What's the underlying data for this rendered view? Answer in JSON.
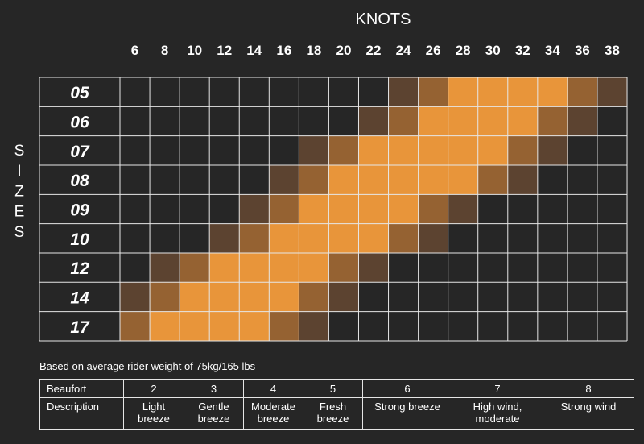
{
  "colors": {
    "background": "#262626",
    "grid_line": "#e6e6e6",
    "level_full": "#e8953a",
    "level_mid": "#956232",
    "level_dark": "#5c4330"
  },
  "chart_data": {
    "type": "heatmap",
    "title": "KNOTS",
    "ylabel": "SIZES",
    "x": [
      6,
      8,
      10,
      12,
      14,
      16,
      18,
      20,
      22,
      24,
      26,
      28,
      30,
      32,
      34,
      36,
      38
    ],
    "y": [
      "05",
      "06",
      "07",
      "08",
      "09",
      "10",
      "12",
      "14",
      "17"
    ],
    "levels_legend": "0 = none, 1 = dark brown, 2 = mid brown, 3 = orange",
    "z": [
      [
        0,
        0,
        0,
        0,
        0,
        0,
        0,
        0,
        0,
        1,
        2,
        3,
        3,
        3,
        3,
        2,
        1
      ],
      [
        0,
        0,
        0,
        0,
        0,
        0,
        0,
        0,
        1,
        2,
        3,
        3,
        3,
        3,
        2,
        1,
        0
      ],
      [
        0,
        0,
        0,
        0,
        0,
        0,
        1,
        2,
        3,
        3,
        3,
        3,
        3,
        2,
        1,
        0,
        0
      ],
      [
        0,
        0,
        0,
        0,
        0,
        1,
        2,
        3,
        3,
        3,
        3,
        3,
        2,
        1,
        0,
        0,
        0
      ],
      [
        0,
        0,
        0,
        0,
        1,
        2,
        3,
        3,
        3,
        3,
        2,
        1,
        0,
        0,
        0,
        0,
        0
      ],
      [
        0,
        0,
        0,
        1,
        2,
        3,
        3,
        3,
        3,
        2,
        1,
        0,
        0,
        0,
        0,
        0,
        0
      ],
      [
        0,
        1,
        2,
        3,
        3,
        3,
        3,
        2,
        1,
        0,
        0,
        0,
        0,
        0,
        0,
        0,
        0
      ],
      [
        1,
        2,
        3,
        3,
        3,
        3,
        2,
        1,
        0,
        0,
        0,
        0,
        0,
        0,
        0,
        0,
        0
      ],
      [
        2,
        3,
        3,
        3,
        3,
        2,
        1,
        0,
        0,
        0,
        0,
        0,
        0,
        0,
        0,
        0,
        0
      ]
    ]
  },
  "note": "Based on average rider weight of 75kg/165 lbs",
  "beaufort": {
    "row1_label": "Beaufort",
    "row2_label": "Description",
    "columns": [
      {
        "force": "2",
        "desc": [
          "Light",
          "breeze"
        ]
      },
      {
        "force": "3",
        "desc": [
          "Gentle",
          "breeze"
        ]
      },
      {
        "force": "4",
        "desc": [
          "Moderate",
          "breeze"
        ]
      },
      {
        "force": "5",
        "desc": [
          "Fresh",
          "breeze"
        ]
      },
      {
        "force": "6",
        "desc": [
          "Strong breeze"
        ]
      },
      {
        "force": "7",
        "desc": [
          "High wind,",
          "moderate"
        ]
      },
      {
        "force": "8",
        "desc": [
          "Strong wind"
        ]
      }
    ]
  }
}
